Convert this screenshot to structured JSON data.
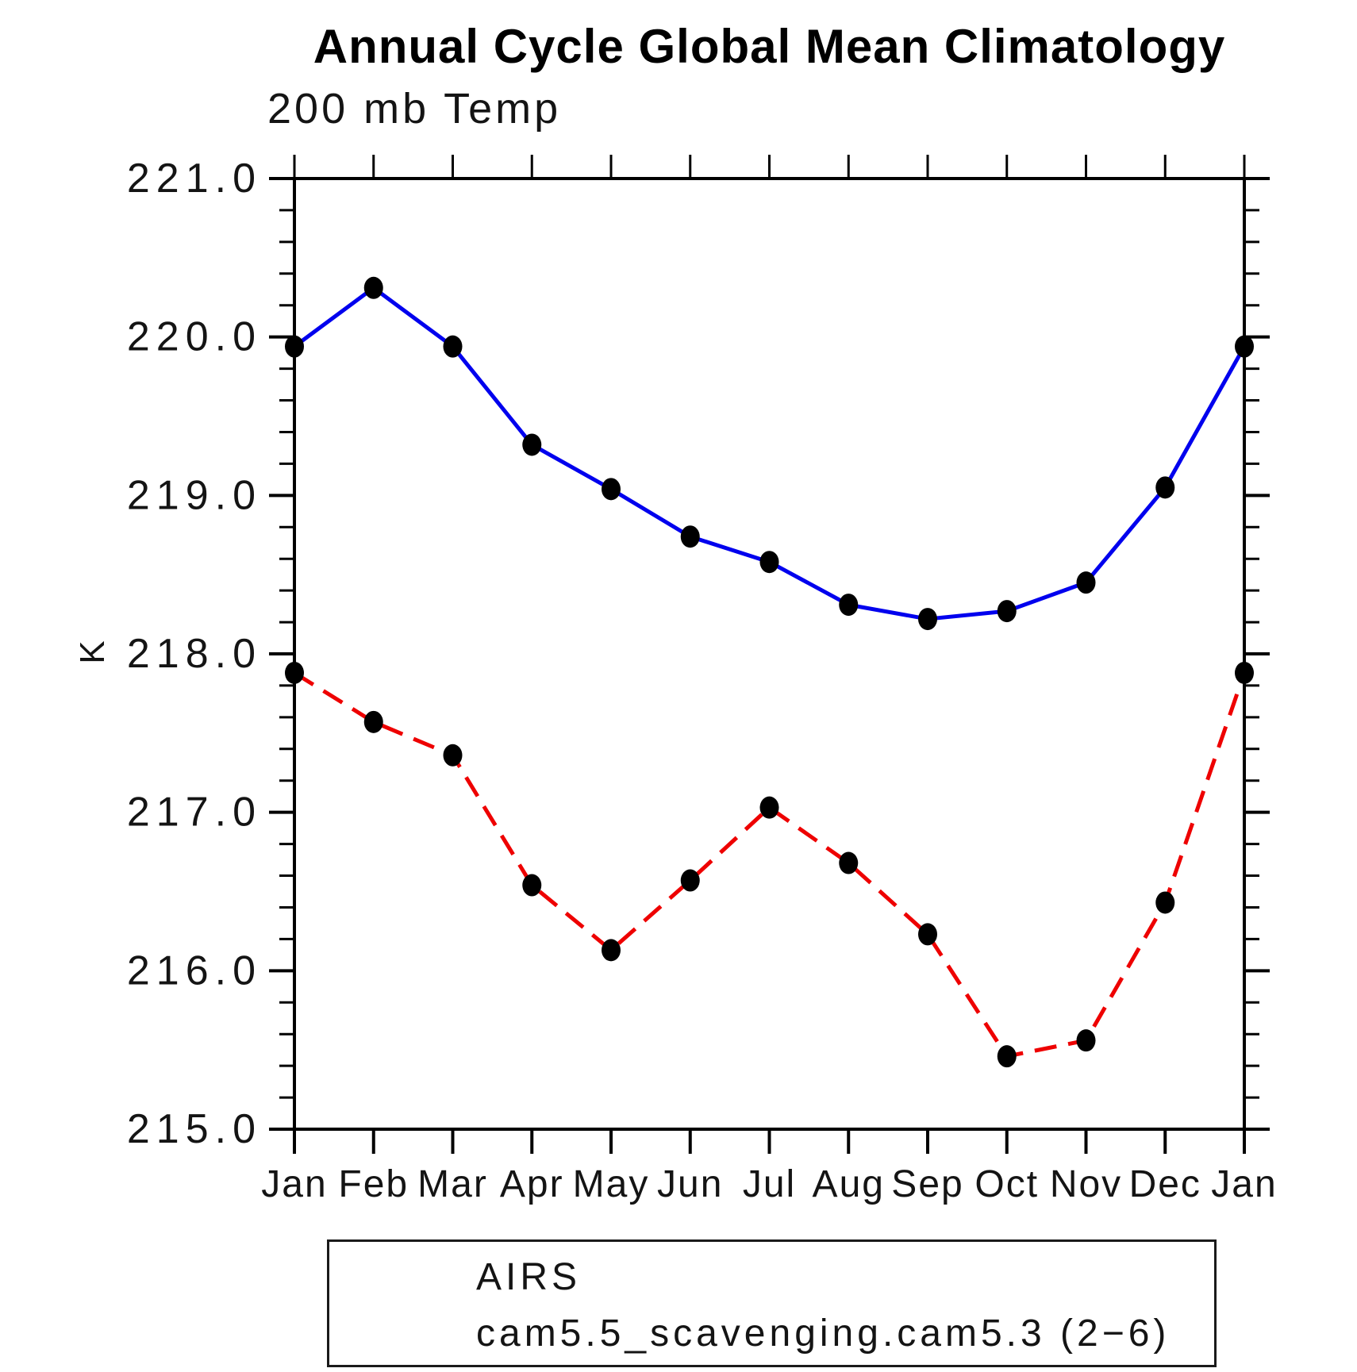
{
  "title": "Annual Cycle Global Mean Climatology",
  "subtitle": "200 mb Temp",
  "y_axis": {
    "label": "K",
    "tick_labels": [
      "221.0",
      "220.0",
      "219.0",
      "218.0",
      "217.0",
      "216.0",
      "215.0"
    ],
    "major_step": 1.0,
    "minor_step": 0.2
  },
  "x_axis": {
    "tick_labels": [
      "Jan",
      "Feb",
      "Mar",
      "Apr",
      "May",
      "Jun",
      "Jul",
      "Aug",
      "Sep",
      "Oct",
      "Nov",
      "Dec",
      "Jan"
    ]
  },
  "legend": [
    {
      "label": "AIRS",
      "color": "#0000ee",
      "style": "solid"
    },
    {
      "label": "cam5.5_scavenging.cam5.3 (2−6)",
      "color": "#ee0000",
      "style": "dashed"
    }
  ],
  "chart_data": {
    "type": "line",
    "x": [
      "Jan",
      "Feb",
      "Mar",
      "Apr",
      "May",
      "Jun",
      "Jul",
      "Aug",
      "Sep",
      "Oct",
      "Nov",
      "Dec",
      "Jan"
    ],
    "title": "Annual Cycle Global Mean Climatology",
    "subtitle": "200 mb Temp",
    "ylabel": "K",
    "ylim": [
      215.0,
      221.0
    ],
    "grid": false,
    "legend_position": "bottom",
    "marker": "black-filled-circle",
    "series": [
      {
        "name": "AIRS",
        "color": "#0000ee",
        "line_style": "solid",
        "values": [
          219.94,
          220.31,
          219.94,
          219.32,
          219.04,
          218.74,
          218.58,
          218.31,
          218.22,
          218.27,
          218.45,
          219.05,
          219.94
        ]
      },
      {
        "name": "cam5.5_scavenging.cam5.3 (2−6)",
        "color": "#ee0000",
        "line_style": "dashed",
        "values": [
          217.88,
          217.57,
          217.36,
          216.54,
          216.13,
          216.57,
          217.03,
          216.68,
          216.23,
          215.46,
          215.56,
          216.43,
          217.88
        ]
      }
    ]
  }
}
